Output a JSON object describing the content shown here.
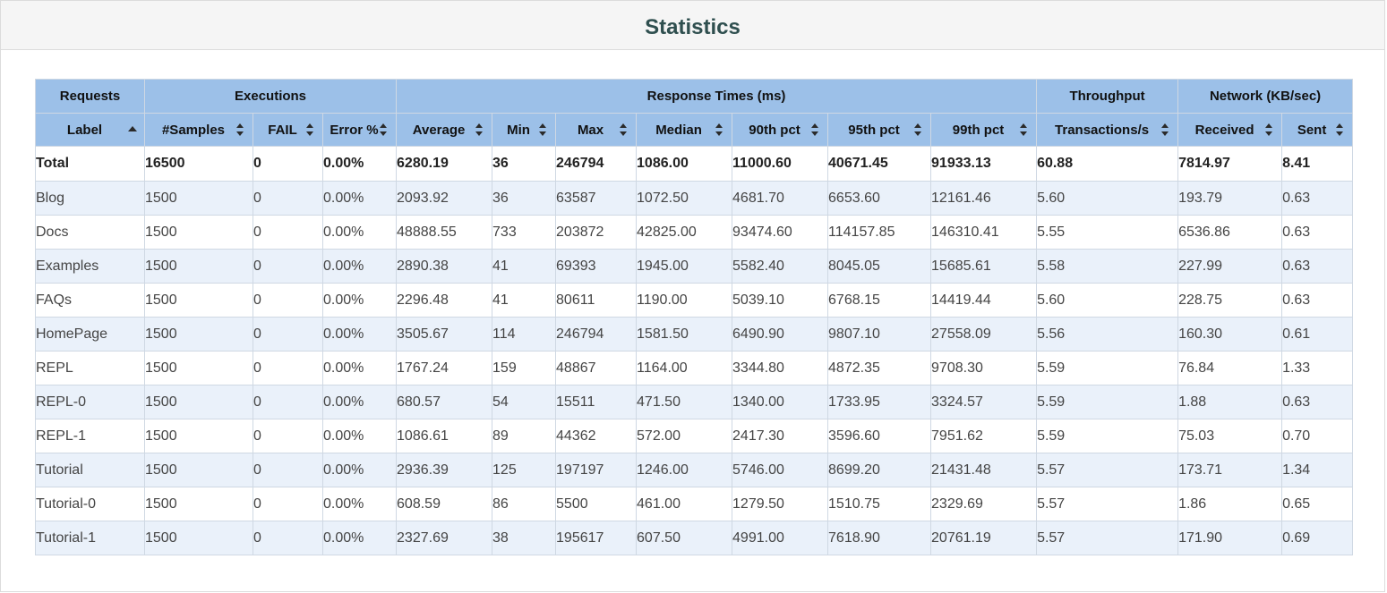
{
  "title": "Statistics",
  "table": {
    "groups": [
      {
        "label": "Requests",
        "span": 1
      },
      {
        "label": "Executions",
        "span": 3
      },
      {
        "label": "Response Times (ms)",
        "span": 7
      },
      {
        "label": "Throughput",
        "span": 1
      },
      {
        "label": "Network (KB/sec)",
        "span": 2
      }
    ],
    "columns": [
      {
        "label": "Label",
        "sort": "asc"
      },
      {
        "label": "#Samples",
        "sort": "both"
      },
      {
        "label": "FAIL",
        "sort": "both"
      },
      {
        "label": "Error %",
        "sort": "both"
      },
      {
        "label": "Average",
        "sort": "both"
      },
      {
        "label": "Min",
        "sort": "both"
      },
      {
        "label": "Max",
        "sort": "both"
      },
      {
        "label": "Median",
        "sort": "both"
      },
      {
        "label": "90th pct",
        "sort": "both"
      },
      {
        "label": "95th pct",
        "sort": "both"
      },
      {
        "label": "99th pct",
        "sort": "both"
      },
      {
        "label": "Transactions/s",
        "sort": "both"
      },
      {
        "label": "Received",
        "sort": "both"
      },
      {
        "label": "Sent",
        "sort": "both"
      }
    ],
    "total": [
      "Total",
      "16500",
      "0",
      "0.00%",
      "6280.19",
      "36",
      "246794",
      "1086.00",
      "11000.60",
      "40671.45",
      "91933.13",
      "60.88",
      "7814.97",
      "8.41"
    ],
    "rows": [
      [
        "Blog",
        "1500",
        "0",
        "0.00%",
        "2093.92",
        "36",
        "63587",
        "1072.50",
        "4681.70",
        "6653.60",
        "12161.46",
        "5.60",
        "193.79",
        "0.63"
      ],
      [
        "Docs",
        "1500",
        "0",
        "0.00%",
        "48888.55",
        "733",
        "203872",
        "42825.00",
        "93474.60",
        "114157.85",
        "146310.41",
        "5.55",
        "6536.86",
        "0.63"
      ],
      [
        "Examples",
        "1500",
        "0",
        "0.00%",
        "2890.38",
        "41",
        "69393",
        "1945.00",
        "5582.40",
        "8045.05",
        "15685.61",
        "5.58",
        "227.99",
        "0.63"
      ],
      [
        "FAQs",
        "1500",
        "0",
        "0.00%",
        "2296.48",
        "41",
        "80611",
        "1190.00",
        "5039.10",
        "6768.15",
        "14419.44",
        "5.60",
        "228.75",
        "0.63"
      ],
      [
        "HomePage",
        "1500",
        "0",
        "0.00%",
        "3505.67",
        "114",
        "246794",
        "1581.50",
        "6490.90",
        "9807.10",
        "27558.09",
        "5.56",
        "160.30",
        "0.61"
      ],
      [
        "REPL",
        "1500",
        "0",
        "0.00%",
        "1767.24",
        "159",
        "48867",
        "1164.00",
        "3344.80",
        "4872.35",
        "9708.30",
        "5.59",
        "76.84",
        "1.33"
      ],
      [
        "REPL-0",
        "1500",
        "0",
        "0.00%",
        "680.57",
        "54",
        "15511",
        "471.50",
        "1340.00",
        "1733.95",
        "3324.57",
        "5.59",
        "1.88",
        "0.63"
      ],
      [
        "REPL-1",
        "1500",
        "0",
        "0.00%",
        "1086.61",
        "89",
        "44362",
        "572.00",
        "2417.30",
        "3596.60",
        "7951.62",
        "5.59",
        "75.03",
        "0.70"
      ],
      [
        "Tutorial",
        "1500",
        "0",
        "0.00%",
        "2936.39",
        "125",
        "197197",
        "1246.00",
        "5746.00",
        "8699.20",
        "21431.48",
        "5.57",
        "173.71",
        "1.34"
      ],
      [
        "Tutorial-0",
        "1500",
        "0",
        "0.00%",
        "608.59",
        "86",
        "5500",
        "461.00",
        "1279.50",
        "1510.75",
        "2329.69",
        "5.57",
        "1.86",
        "0.65"
      ],
      [
        "Tutorial-1",
        "1500",
        "0",
        "0.00%",
        "2327.69",
        "38",
        "195617",
        "607.50",
        "4991.00",
        "7618.90",
        "20761.19",
        "5.57",
        "171.90",
        "0.69"
      ]
    ]
  }
}
